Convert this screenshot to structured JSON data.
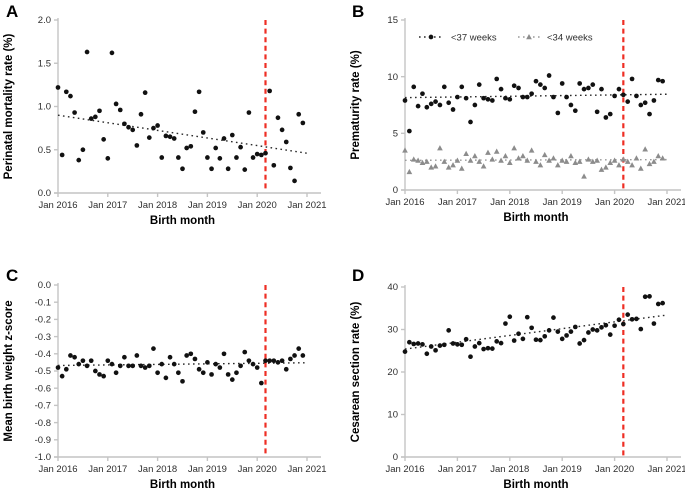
{
  "figure": {
    "background": "#ffffff"
  },
  "colors": {
    "point_black": "#111111",
    "point_gray": "#8c8c8c",
    "axis": "#c4c4c4",
    "tick_text": "#2e2e2e",
    "label_text": "#000000",
    "trend_black": "#2a2a2a",
    "trend_gray": "#9a9a9a",
    "intervention_red": "#ee2e24"
  },
  "x_axis": {
    "label": "Birth month",
    "tick_labels": [
      "Jan 2016",
      "Jan 2017",
      "Jan 2018",
      "Jan 2019",
      "Jan 2020",
      "Jan 2021"
    ],
    "tick_months": [
      0,
      12,
      24,
      36,
      48,
      60
    ]
  },
  "chart_data": [
    {
      "letter": "A",
      "type": "scatter",
      "title": "",
      "xlabel": "Birth month",
      "ylabel": "Perinatal mortality rate (%)",
      "ylim": [
        0,
        2
      ],
      "yticks": [
        0,
        0.5,
        1,
        1.5,
        2
      ],
      "ytick_labels": [
        "0.0",
        "0.5",
        "1.0",
        "1.5",
        "2.0"
      ],
      "x_range_months": [
        "Jan 2016",
        "Dec 2020"
      ],
      "intervention_month": 50,
      "grid": false,
      "series": [
        {
          "name": "Perinatal mortality rate",
          "marker": "circle",
          "color_key": "point_black",
          "values": [
            1.22,
            0.44,
            1.17,
            1.12,
            0.93,
            0.38,
            0.5,
            1.63,
            0.86,
            0.88,
            0.95,
            0.62,
            0.4,
            1.62,
            1.03,
            0.96,
            0.8,
            0.76,
            0.73,
            0.55,
            0.91,
            1.16,
            0.64,
            0.75,
            0.78,
            0.41,
            0.66,
            0.65,
            0.63,
            0.41,
            0.28,
            0.52,
            0.54,
            0.94,
            1.17,
            0.7,
            0.41,
            0.28,
            0.52,
            0.4,
            0.63,
            0.28,
            0.67,
            0.41,
            0.53,
            0.27,
            0.93,
            0.41,
            0.45,
            0.44,
            0.46,
            1.18,
            0.32,
            0.87,
            0.73,
            0.59,
            0.29,
            0.14,
            0.91,
            0.81
          ]
        }
      ],
      "trends": [
        {
          "start": 0.9,
          "end": 0.46,
          "color_key": "trend_black"
        }
      ]
    },
    {
      "letter": "B",
      "type": "scatter",
      "title": "",
      "xlabel": "Birth month",
      "ylabel": "Prematurity rate (%)",
      "ylim": [
        0,
        15
      ],
      "yticks": [
        0,
        5,
        10,
        15
      ],
      "ytick_labels": [
        "0",
        "5",
        "10",
        "15"
      ],
      "x_range_months": [
        "Jan 2016",
        "Dec 2020"
      ],
      "intervention_month": 50,
      "grid": false,
      "legend": {
        "show": true,
        "position": "top-inside",
        "items": [
          {
            "label": "<37 weeks",
            "marker": "circle",
            "color_key": "point_black"
          },
          {
            "label": "<34 weeks",
            "marker": "triangle",
            "color_key": "point_gray"
          }
        ]
      },
      "series": [
        {
          "name": "<37 weeks",
          "marker": "circle",
          "color_key": "point_black",
          "values": [
            7.9,
            5.2,
            9.1,
            7.4,
            8.5,
            7.3,
            7.6,
            7.8,
            7.5,
            9.1,
            7.7,
            7.1,
            8.2,
            9.1,
            8.1,
            6.0,
            7.5,
            9.3,
            8.1,
            8.0,
            7.9,
            9.8,
            8.9,
            8.1,
            8.0,
            9.2,
            9.0,
            8.2,
            8.2,
            8.5,
            9.6,
            9.3,
            9.0,
            10.1,
            8.2,
            6.8,
            9.4,
            8.2,
            7.5,
            7.0,
            9.4,
            8.9,
            9.0,
            9.3,
            6.9,
            8.9,
            6.4,
            6.7,
            8.3,
            8.9,
            8.4,
            7.8,
            9.8,
            8.3,
            7.5,
            7.7,
            6.7,
            7.9,
            9.7,
            9.6
          ]
        },
        {
          "name": "<34 weeks",
          "marker": "triangle",
          "color_key": "point_gray",
          "values": [
            3.5,
            1.6,
            2.7,
            2.6,
            2.4,
            2.5,
            2.0,
            2.1,
            3.7,
            2.5,
            2.0,
            2.2,
            2.6,
            1.9,
            3.2,
            2.6,
            3.0,
            2.5,
            2.1,
            3.3,
            2.7,
            3.4,
            2.6,
            3.0,
            2.4,
            3.7,
            2.8,
            3.0,
            2.6,
            3.5,
            2.5,
            2.2,
            3.1,
            2.6,
            2.8,
            2.2,
            2.6,
            2.5,
            3.0,
            2.4,
            2.5,
            1.2,
            2.7,
            2.5,
            2.6,
            1.8,
            2.0,
            2.4,
            2.6,
            2.2,
            2.7,
            2.5,
            2.2,
            2.8,
            1.9,
            3.6,
            2.3,
            2.5,
            3.0,
            2.8
          ]
        }
      ],
      "trends": [
        {
          "start": 8.15,
          "end": 8.45,
          "color_key": "trend_black"
        },
        {
          "start": 2.62,
          "end": 2.68,
          "color_key": "trend_gray"
        }
      ]
    },
    {
      "letter": "C",
      "type": "scatter",
      "title": "",
      "xlabel": "Birth month",
      "ylabel": "Mean birth weight z-score",
      "ylim": [
        -1,
        0
      ],
      "yticks": [
        0,
        -0.1,
        -0.2,
        -0.3,
        -0.4,
        -0.5,
        -0.6,
        -0.7,
        -0.8,
        -0.9,
        -1.0
      ],
      "ytick_labels": [
        "0.0",
        "-0.1",
        "-0.2",
        "-0.3",
        "-0.4",
        "-0.5",
        "-0.6",
        "-0.7",
        "-0.8",
        "-0.9",
        "-1.0"
      ],
      "x_range_months": [
        "Jan 2016",
        "Dec 2020"
      ],
      "intervention_month": 50,
      "grid": false,
      "series": [
        {
          "name": "Mean birth weight z-score",
          "marker": "circle",
          "color_key": "point_black",
          "values": [
            -0.48,
            -0.53,
            -0.49,
            -0.41,
            -0.42,
            -0.46,
            -0.44,
            -0.47,
            -0.44,
            -0.5,
            -0.52,
            -0.53,
            -0.44,
            -0.46,
            -0.51,
            -0.47,
            -0.42,
            -0.47,
            -0.47,
            -0.41,
            -0.47,
            -0.48,
            -0.47,
            -0.37,
            -0.51,
            -0.46,
            -0.54,
            -0.42,
            -0.46,
            -0.51,
            -0.56,
            -0.41,
            -0.4,
            -0.43,
            -0.49,
            -0.51,
            -0.45,
            -0.52,
            -0.46,
            -0.48,
            -0.4,
            -0.52,
            -0.55,
            -0.51,
            -0.47,
            -0.39,
            -0.44,
            -0.46,
            -0.48,
            -0.57,
            -0.44,
            -0.44,
            -0.44,
            -0.45,
            -0.44,
            -0.49,
            -0.43,
            -0.41,
            -0.37,
            -0.41
          ]
        }
      ],
      "trends": [
        {
          "start": -0.468,
          "end": -0.452,
          "color_key": "trend_black"
        }
      ]
    },
    {
      "letter": "D",
      "type": "scatter",
      "title": "",
      "xlabel": "Birth month",
      "ylabel": "Cesarean section rate (%)",
      "ylim": [
        0,
        40
      ],
      "yticks": [
        0,
        10,
        20,
        30,
        40
      ],
      "ytick_labels": [
        "0",
        "10",
        "20",
        "30",
        "40"
      ],
      "x_range_months": [
        "Jan 2016",
        "Dec 2020"
      ],
      "intervention_month": 50,
      "grid": false,
      "series": [
        {
          "name": "Cesarean section rate",
          "marker": "circle",
          "color_key": "point_black",
          "values": [
            24.8,
            27.0,
            26.6,
            26.7,
            26.5,
            24.3,
            26.0,
            25.1,
            26.2,
            26.4,
            29.8,
            26.7,
            26.5,
            26.4,
            27.7,
            23.6,
            26.0,
            26.8,
            25.4,
            25.6,
            25.5,
            27.2,
            26.8,
            31.4,
            33.0,
            27.4,
            29.0,
            27.8,
            32.9,
            30.4,
            27.6,
            27.5,
            28.4,
            29.8,
            32.8,
            29.5,
            27.8,
            28.6,
            29.5,
            30.6,
            26.7,
            27.5,
            29.3,
            30.0,
            29.8,
            30.5,
            31.0,
            28.8,
            30.9,
            32.3,
            31.3,
            33.5,
            32.4,
            32.5,
            30.1,
            37.7,
            37.8,
            31.4,
            36.0,
            36.2
          ]
        }
      ],
      "trends": [
        {
          "start": 25.4,
          "end": 33.4,
          "color_key": "trend_black"
        }
      ]
    }
  ]
}
